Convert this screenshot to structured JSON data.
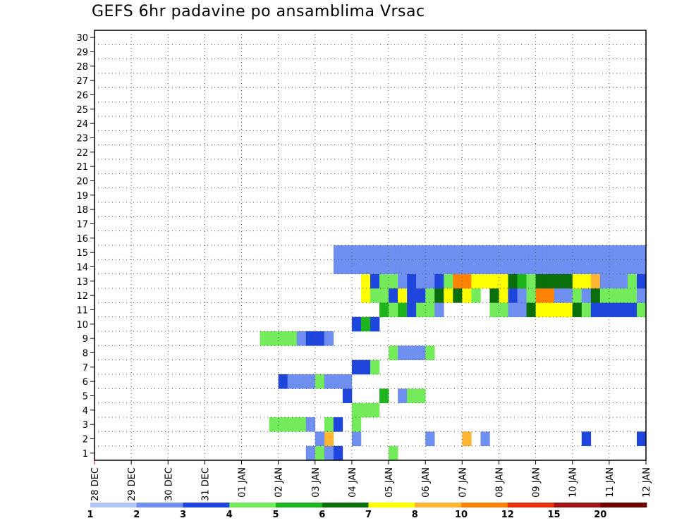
{
  "chart_data": {
    "type": "heatmap",
    "title": "GEFS 6hr padavine po ansamblima Vrsac",
    "x_labels": [
      "28 DEC",
      "29 DEC",
      "30 DEC",
      "31 DEC",
      "01 JAN",
      "02 JAN",
      "03 JAN",
      "04 JAN",
      "05 JAN",
      "06 JAN",
      "07 JAN",
      "08 JAN",
      "09 JAN",
      "10 JAN",
      "11 JAN",
      "12 JAN"
    ],
    "y_labels": [
      "1",
      "2",
      "3",
      "4",
      "5",
      "6",
      "7",
      "8",
      "9",
      "10",
      "11",
      "12",
      "13",
      "14",
      "15",
      "16",
      "17",
      "18",
      "19",
      "20",
      "21",
      "22",
      "23",
      "24",
      "25",
      "26",
      "27",
      "28",
      "29",
      "30"
    ],
    "time_steps_per_day": 4,
    "legend": {
      "labels": [
        "1",
        "2",
        "3",
        "4",
        "5",
        "6",
        "7",
        "8",
        "10",
        "12",
        "15",
        "20"
      ],
      "colors": [
        "#b4c6f5",
        "#6e8ff0",
        "#1e46dc",
        "#73eb5a",
        "#1eb41e",
        "#0a6e0a",
        "#ffff00",
        "#ffb432",
        "#ff8200",
        "#e6320a",
        "#a01414",
        "#6e0000"
      ]
    },
    "cells": [
      [
        23,
        0,
        1
      ],
      [
        24,
        0,
        3
      ],
      [
        25,
        0,
        1
      ],
      [
        26,
        0,
        2
      ],
      [
        32,
        0,
        3
      ],
      [
        25,
        1,
        7
      ],
      [
        40,
        1,
        7
      ],
      [
        24,
        1,
        1
      ],
      [
        28,
        1,
        1
      ],
      [
        36,
        1,
        1
      ],
      [
        42,
        1,
        1
      ],
      [
        53,
        1,
        2
      ],
      [
        59,
        1,
        2
      ],
      [
        19,
        2,
        3
      ],
      [
        20,
        2,
        3
      ],
      [
        21,
        2,
        3
      ],
      [
        22,
        2,
        3
      ],
      [
        23,
        2,
        1
      ],
      [
        25,
        2,
        3
      ],
      [
        26,
        2,
        2
      ],
      [
        28,
        2,
        3
      ],
      [
        28,
        3,
        3
      ],
      [
        29,
        3,
        3
      ],
      [
        30,
        3,
        3
      ],
      [
        33,
        4,
        1
      ],
      [
        27,
        4,
        2
      ],
      [
        31,
        4,
        4
      ],
      [
        34,
        4,
        3
      ],
      [
        35,
        4,
        3
      ],
      [
        20,
        5,
        2
      ],
      [
        21,
        5,
        1
      ],
      [
        22,
        5,
        1
      ],
      [
        23,
        5,
        1
      ],
      [
        24,
        5,
        3
      ],
      [
        25,
        5,
        1
      ],
      [
        26,
        5,
        1
      ],
      [
        27,
        5,
        1
      ],
      [
        28,
        6,
        2
      ],
      [
        29,
        6,
        2
      ],
      [
        30,
        6,
        3
      ],
      [
        32,
        7,
        3
      ],
      [
        33,
        7,
        1
      ],
      [
        34,
        7,
        1
      ],
      [
        35,
        7,
        1
      ],
      [
        36,
        7,
        3
      ],
      [
        18,
        8,
        3
      ],
      [
        19,
        8,
        3
      ],
      [
        20,
        8,
        3
      ],
      [
        21,
        8,
        3
      ],
      [
        22,
        8,
        1
      ],
      [
        23,
        8,
        2
      ],
      [
        24,
        8,
        2
      ],
      [
        25,
        8,
        1
      ],
      [
        28,
        9,
        2
      ],
      [
        29,
        9,
        4
      ],
      [
        30,
        9,
        2
      ],
      [
        31,
        10,
        4
      ],
      [
        32,
        10,
        3
      ],
      [
        33,
        10,
        4
      ],
      [
        34,
        10,
        2
      ],
      [
        35,
        10,
        3
      ],
      [
        36,
        10,
        3
      ],
      [
        37,
        10,
        1
      ],
      [
        43,
        10,
        3
      ],
      [
        44,
        10,
        3
      ],
      [
        45,
        10,
        1
      ],
      [
        46,
        10,
        1
      ],
      [
        47,
        10,
        5
      ],
      [
        48,
        10,
        6
      ],
      [
        49,
        10,
        6
      ],
      [
        50,
        10,
        6
      ],
      [
        51,
        10,
        6
      ],
      [
        52,
        10,
        5
      ],
      [
        53,
        10,
        3
      ],
      [
        54,
        10,
        2
      ],
      [
        55,
        10,
        2
      ],
      [
        56,
        10,
        2
      ],
      [
        57,
        10,
        2
      ],
      [
        58,
        10,
        2
      ],
      [
        59,
        10,
        3
      ],
      [
        29,
        11,
        6
      ],
      [
        30,
        11,
        3
      ],
      [
        31,
        11,
        3
      ],
      [
        32,
        11,
        2
      ],
      [
        33,
        11,
        6
      ],
      [
        34,
        11,
        2
      ],
      [
        35,
        11,
        2
      ],
      [
        36,
        11,
        3
      ],
      [
        37,
        11,
        5
      ],
      [
        38,
        11,
        6
      ],
      [
        39,
        11,
        5
      ],
      [
        40,
        11,
        6
      ],
      [
        41,
        11,
        3
      ],
      [
        43,
        11,
        5
      ],
      [
        44,
        11,
        6
      ],
      [
        45,
        11,
        2
      ],
      [
        46,
        11,
        1
      ],
      [
        47,
        11,
        3
      ],
      [
        48,
        11,
        8
      ],
      [
        49,
        11,
        8
      ],
      [
        50,
        11,
        1
      ],
      [
        51,
        11,
        1
      ],
      [
        52,
        11,
        3
      ],
      [
        53,
        11,
        1
      ],
      [
        54,
        11,
        5
      ],
      [
        55,
        11,
        3
      ],
      [
        56,
        11,
        3
      ],
      [
        57,
        11,
        3
      ],
      [
        58,
        11,
        3
      ],
      [
        59,
        11,
        1
      ],
      [
        29,
        12,
        6
      ],
      [
        30,
        12,
        2
      ],
      [
        31,
        12,
        3
      ],
      [
        32,
        12,
        3
      ],
      [
        33,
        12,
        1
      ],
      [
        34,
        12,
        2
      ],
      [
        35,
        12,
        1
      ],
      [
        36,
        12,
        1
      ],
      [
        37,
        12,
        2
      ],
      [
        38,
        12,
        3
      ],
      [
        39,
        12,
        8
      ],
      [
        40,
        12,
        8
      ],
      [
        41,
        12,
        6
      ],
      [
        42,
        12,
        6
      ],
      [
        43,
        12,
        6
      ],
      [
        44,
        12,
        6
      ],
      [
        45,
        12,
        5
      ],
      [
        46,
        12,
        4
      ],
      [
        47,
        12,
        3
      ],
      [
        48,
        12,
        5
      ],
      [
        49,
        12,
        5
      ],
      [
        50,
        12,
        5
      ],
      [
        51,
        12,
        5
      ],
      [
        52,
        12,
        6
      ],
      [
        53,
        12,
        6
      ],
      [
        54,
        12,
        7
      ],
      [
        55,
        12,
        1
      ],
      [
        56,
        12,
        1
      ],
      [
        57,
        12,
        1
      ],
      [
        58,
        12,
        3
      ],
      [
        59,
        12,
        2
      ],
      [
        26,
        13,
        1
      ],
      [
        27,
        13,
        1
      ],
      [
        28,
        13,
        1
      ],
      [
        29,
        13,
        1
      ],
      [
        30,
        13,
        1
      ],
      [
        31,
        13,
        1
      ],
      [
        32,
        13,
        1
      ],
      [
        33,
        13,
        1
      ],
      [
        34,
        13,
        1
      ],
      [
        35,
        13,
        1
      ],
      [
        36,
        13,
        1
      ],
      [
        37,
        13,
        1
      ],
      [
        38,
        13,
        1
      ],
      [
        39,
        13,
        1
      ],
      [
        40,
        13,
        1
      ],
      [
        41,
        13,
        1
      ],
      [
        42,
        13,
        1
      ],
      [
        43,
        13,
        1
      ],
      [
        44,
        13,
        1
      ],
      [
        45,
        13,
        1
      ],
      [
        46,
        13,
        1
      ],
      [
        47,
        13,
        1
      ],
      [
        48,
        13,
        1
      ],
      [
        49,
        13,
        1
      ],
      [
        50,
        13,
        1
      ],
      [
        51,
        13,
        1
      ],
      [
        52,
        13,
        1
      ],
      [
        53,
        13,
        1
      ],
      [
        54,
        13,
        1
      ],
      [
        55,
        13,
        1
      ],
      [
        56,
        13,
        1
      ],
      [
        57,
        13,
        1
      ],
      [
        58,
        13,
        1
      ],
      [
        59,
        13,
        1
      ],
      [
        26,
        14,
        1
      ],
      [
        27,
        14,
        1
      ],
      [
        28,
        14,
        1
      ],
      [
        29,
        14,
        1
      ],
      [
        30,
        14,
        1
      ],
      [
        31,
        14,
        1
      ],
      [
        32,
        14,
        1
      ],
      [
        33,
        14,
        1
      ],
      [
        34,
        14,
        1
      ],
      [
        35,
        14,
        1
      ],
      [
        36,
        14,
        1
      ],
      [
        37,
        14,
        1
      ],
      [
        38,
        14,
        1
      ],
      [
        39,
        14,
        1
      ],
      [
        40,
        14,
        1
      ],
      [
        41,
        14,
        1
      ],
      [
        42,
        14,
        1
      ],
      [
        43,
        14,
        1
      ],
      [
        44,
        14,
        1
      ],
      [
        45,
        14,
        1
      ],
      [
        46,
        14,
        1
      ],
      [
        47,
        14,
        1
      ],
      [
        48,
        14,
        1
      ],
      [
        49,
        14,
        1
      ],
      [
        50,
        14,
        1
      ],
      [
        51,
        14,
        1
      ],
      [
        52,
        14,
        1
      ],
      [
        53,
        14,
        1
      ],
      [
        54,
        14,
        1
      ],
      [
        55,
        14,
        1
      ],
      [
        56,
        14,
        1
      ],
      [
        57,
        14,
        1
      ],
      [
        58,
        14,
        1
      ],
      [
        59,
        14,
        1
      ]
    ]
  }
}
